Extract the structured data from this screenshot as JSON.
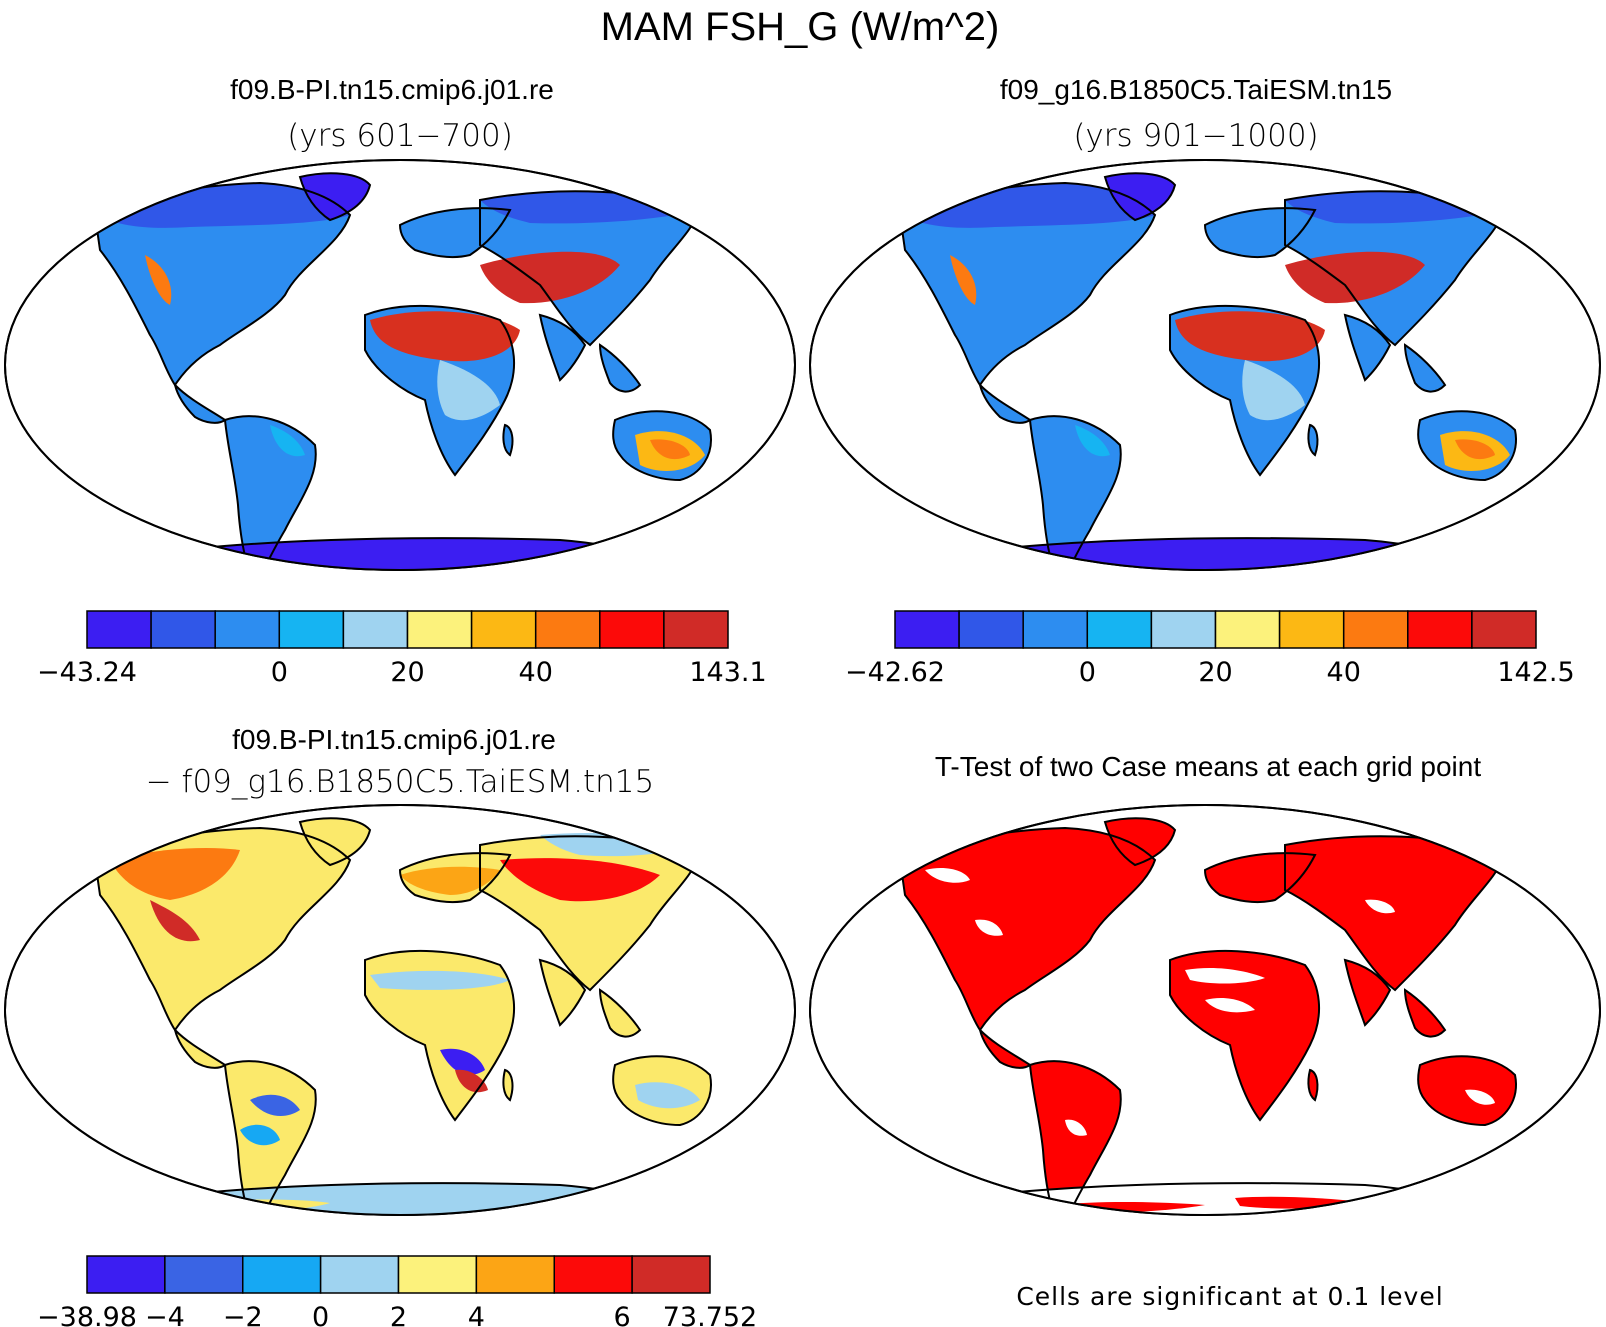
{
  "figure": {
    "title": "MAM FSH_G (W/m^2)"
  },
  "panels": {
    "case1": {
      "name": "f09.B-PI.tn15.cmip6.j01.re",
      "years": "(yrs 601−700)",
      "colorbar": {
        "colors": [
          "#3c1ef2",
          "#3057e8",
          "#2d8df0",
          "#16b4f2",
          "#9fd3f0",
          "#fcf27c",
          "#fcb814",
          "#fc7a11",
          "#fc0a09",
          "#d02b27"
        ],
        "labels": [
          "−43.24",
          "0",
          "20",
          "40",
          "143.1"
        ]
      }
    },
    "case2": {
      "name": "f09_g16.B1850C5.TaiESM.tn15",
      "years": "(yrs 901−1000)",
      "colorbar": {
        "colors": [
          "#3c1ef2",
          "#3057e8",
          "#2d8df0",
          "#16b4f2",
          "#9fd3f0",
          "#fcf27c",
          "#fcb814",
          "#fc7a11",
          "#fc0a09",
          "#d02b27"
        ],
        "labels": [
          "−42.62",
          "0",
          "20",
          "40",
          "142.5"
        ]
      }
    },
    "diff": {
      "line1": "f09.B-PI.tn15.cmip6.j01.re",
      "line2": "− f09_g16.B1850C5.TaiESM.tn15",
      "colorbar": {
        "colors": [
          "#3c1ef2",
          "#3a64e4",
          "#16a8f3",
          "#9fd3f0",
          "#fcf27c",
          "#fca515",
          "#fc0a09",
          "#d02b27"
        ],
        "labels": [
          "−38.98",
          "−4",
          "−2",
          "0",
          "2",
          "4",
          "6",
          "73.752"
        ]
      }
    },
    "ttest": {
      "title": "T-Test of two Case means at each grid point",
      "note": "Cells are significant at 0.1 level",
      "sig_color": "#ff0000"
    }
  },
  "map_colors": {
    "warm_desert": "#d8301f",
    "orange": "#f77b13",
    "yellow": "#fbe96b",
    "light_blue": "#9fd3f0",
    "cyan": "#22aaf0",
    "blue": "#2d7ee8",
    "violet": "#3c1ef2"
  }
}
